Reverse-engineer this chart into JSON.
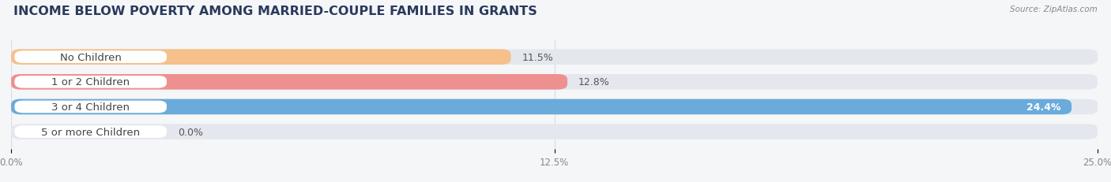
{
  "title": "INCOME BELOW POVERTY AMONG MARRIED-COUPLE FAMILIES IN GRANTS",
  "source": "Source: ZipAtlas.com",
  "categories": [
    "No Children",
    "1 or 2 Children",
    "3 or 4 Children",
    "5 or more Children"
  ],
  "values": [
    11.5,
    12.8,
    24.4,
    0.0
  ],
  "bar_colors": [
    "#f5c08a",
    "#ee9090",
    "#6aabdb",
    "#c9a8d4"
  ],
  "background_color": "#f5f6f8",
  "bar_bg_color": "#e4e8ee",
  "xlim_max": 25.0,
  "xticks": [
    0.0,
    12.5,
    25.0
  ],
  "xtick_labels": [
    "0.0%",
    "12.5%",
    "25.0%"
  ],
  "title_fontsize": 11.5,
  "label_fontsize": 9.5,
  "value_fontsize": 9,
  "bar_height": 0.62,
  "label_color": "#444444",
  "value_color_default": "#555555",
  "value_color_inside": "#ffffff",
  "grid_color": "#d8dce4",
  "source_color": "#888888"
}
